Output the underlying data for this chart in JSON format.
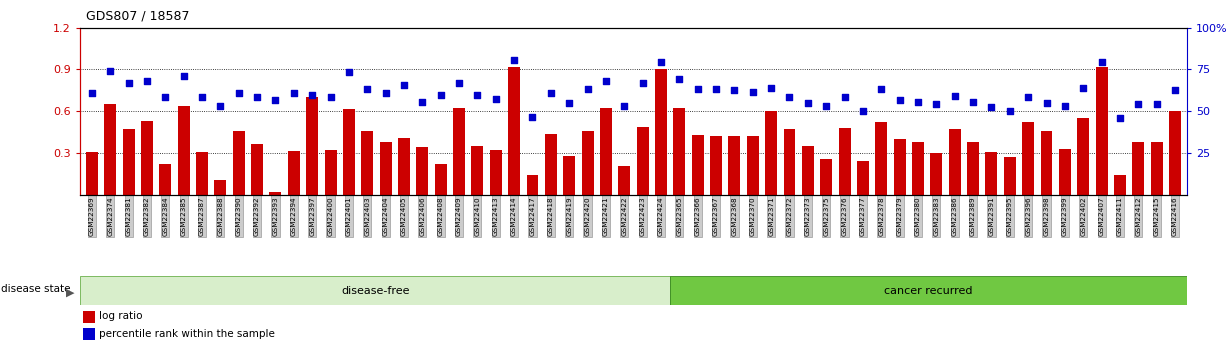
{
  "title": "GDS807 / 18587",
  "samples": [
    "GSM22369",
    "GSM22374",
    "GSM22381",
    "GSM22382",
    "GSM22384",
    "GSM22385",
    "GSM22387",
    "GSM22388",
    "GSM22390",
    "GSM22392",
    "GSM22393",
    "GSM22394",
    "GSM22397",
    "GSM22400",
    "GSM22401",
    "GSM22403",
    "GSM22404",
    "GSM22405",
    "GSM22406",
    "GSM22408",
    "GSM22409",
    "GSM22410",
    "GSM22413",
    "GSM22414",
    "GSM22417",
    "GSM22418",
    "GSM22419",
    "GSM22420",
    "GSM22421",
    "GSM22422",
    "GSM22423",
    "GSM22424",
    "GSM22365",
    "GSM22366",
    "GSM22367",
    "GSM22368",
    "GSM22370",
    "GSM22371",
    "GSM22372",
    "GSM22373",
    "GSM22375",
    "GSM22376",
    "GSM22377",
    "GSM22378",
    "GSM22379",
    "GSM22380",
    "GSM22383",
    "GSM22386",
    "GSM22389",
    "GSM22391",
    "GSM22395",
    "GSM22396",
    "GSM22398",
    "GSM22399",
    "GSM22402",
    "GSM22407",
    "GSM22411",
    "GSM22412",
    "GSM22415",
    "GSM22416"
  ],
  "log_ratio": [
    0.305,
    0.655,
    0.475,
    0.53,
    0.22,
    0.635,
    0.31,
    0.11,
    0.46,
    0.365,
    0.02,
    0.315,
    0.7,
    0.325,
    0.615,
    0.455,
    0.38,
    0.41,
    0.345,
    0.22,
    0.62,
    0.35,
    0.32,
    0.92,
    0.14,
    0.44,
    0.28,
    0.46,
    0.62,
    0.21,
    0.49,
    0.9,
    0.62,
    0.43,
    0.42,
    0.42,
    0.42,
    0.6,
    0.47,
    0.35,
    0.26,
    0.48,
    0.24,
    0.52,
    0.4,
    0.38,
    0.3,
    0.47,
    0.38,
    0.31,
    0.27,
    0.52,
    0.46,
    0.33,
    0.55,
    0.92,
    0.14,
    0.38,
    0.38,
    0.6
  ],
  "percentile": [
    0.73,
    0.89,
    0.8,
    0.82,
    0.7,
    0.85,
    0.7,
    0.64,
    0.73,
    0.7,
    0.68,
    0.73,
    0.72,
    0.7,
    0.88,
    0.76,
    0.73,
    0.79,
    0.67,
    0.72,
    0.8,
    0.72,
    0.69,
    0.97,
    0.56,
    0.73,
    0.66,
    0.76,
    0.82,
    0.64,
    0.8,
    0.95,
    0.83,
    0.76,
    0.76,
    0.75,
    0.74,
    0.77,
    0.7,
    0.66,
    0.64,
    0.7,
    0.6,
    0.76,
    0.68,
    0.67,
    0.65,
    0.71,
    0.67,
    0.63,
    0.6,
    0.7,
    0.66,
    0.64,
    0.77,
    0.95,
    0.55,
    0.65,
    0.65,
    0.75
  ],
  "disease_free_count": 32,
  "bar_color": "#cc0000",
  "dot_color": "#0000cc",
  "left_axis_color": "#cc0000",
  "right_axis_color": "#0000cc",
  "ylim_left": [
    0,
    1.2
  ],
  "yticks_left": [
    0.3,
    0.6,
    0.9,
    1.2
  ],
  "ytick_labels_left": [
    "0.3",
    "0.6",
    "0.9",
    "1.2"
  ],
  "yticks_right": [
    25,
    50,
    75,
    100
  ],
  "ytick_labels_right": [
    "25",
    "50",
    "75",
    "100%"
  ],
  "disease_free_bg": "#d8eecb",
  "cancer_recurred_bg": "#70c842",
  "plot_bg": "#ffffff"
}
